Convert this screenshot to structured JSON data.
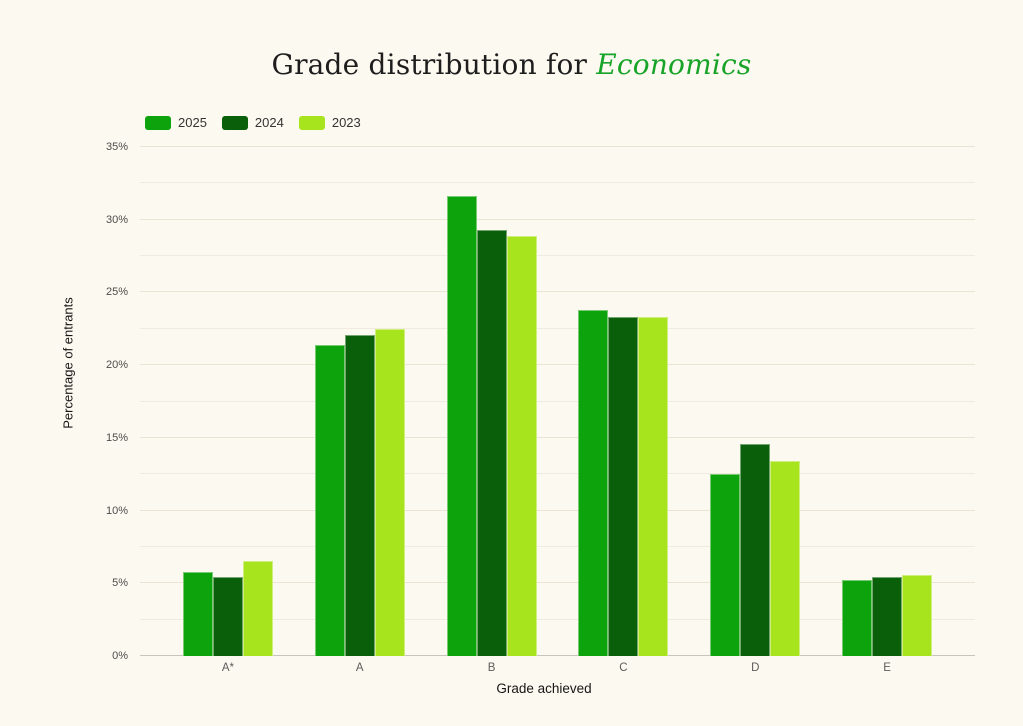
{
  "page": {
    "background_color": "#FCF9F0"
  },
  "title": {
    "prefix": "Grade distribution for ",
    "emphasis": "Economics",
    "emphasis_color": "#18A428",
    "text_color": "#1e1e1e"
  },
  "chart_data": {
    "type": "bar",
    "title": "Grade distribution for Economics",
    "categories": [
      "A*",
      "A",
      "B",
      "C",
      "D",
      "E"
    ],
    "series": [
      {
        "name": "2025",
        "color": "#0CA30C",
        "values": [
          5.8,
          21.4,
          31.6,
          23.8,
          12.5,
          5.2
        ]
      },
      {
        "name": "2024",
        "color": "#0A5F0A",
        "values": [
          5.4,
          22.1,
          29.3,
          23.3,
          14.6,
          5.4
        ]
      },
      {
        "name": "2023",
        "color": "#A8E41E",
        "values": [
          6.5,
          22.5,
          28.9,
          23.3,
          13.4,
          5.6
        ]
      }
    ],
    "xlabel": "Grade achieved",
    "ylabel": "Percentage of entrants",
    "ylim": [
      0,
      35
    ],
    "ytick_step": 5,
    "ytick_suffix": "%",
    "grid_minor_step": 2.5,
    "grid": true,
    "legend_position": "top-left"
  }
}
